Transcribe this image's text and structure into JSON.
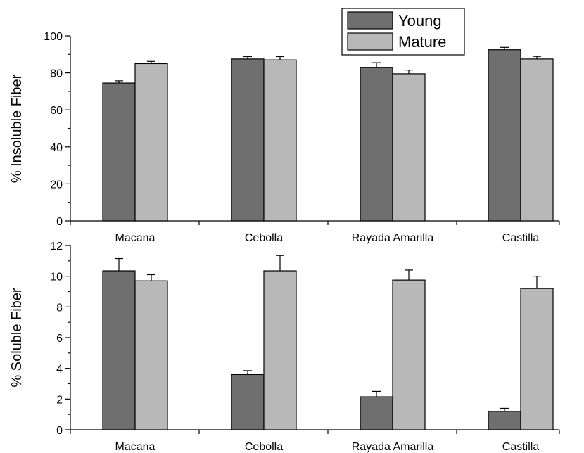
{
  "chart_data": [
    {
      "type": "bar",
      "title": "",
      "xlabel": "",
      "ylabel": "% Insoluble Fiber",
      "ylim": [
        0,
        100
      ],
      "yticks": [
        0,
        20,
        40,
        60,
        80,
        100
      ],
      "categories": [
        "Macana",
        "Cebolla",
        "Rayada Amarilla",
        "Castilla"
      ],
      "series": [
        {
          "name": "Young",
          "color": "#6f6f6f",
          "values": [
            74.5,
            87.5,
            83.0,
            92.5
          ],
          "errors": [
            1.2,
            1.3,
            2.5,
            1.3
          ]
        },
        {
          "name": "Mature",
          "color": "#b8b8b8",
          "values": [
            85.0,
            87.0,
            79.5,
            87.5
          ],
          "errors": [
            1.2,
            1.8,
            2.0,
            1.4
          ]
        }
      ],
      "legend": "top-right",
      "grid": false
    },
    {
      "type": "bar",
      "title": "",
      "xlabel": "",
      "ylabel": "% Soluble Fiber",
      "ylim": [
        0,
        12
      ],
      "yticks": [
        0,
        2,
        4,
        6,
        8,
        10,
        12
      ],
      "categories": [
        "Macana",
        "Cebolla",
        "Rayada Amarilla",
        "Castilla"
      ],
      "series": [
        {
          "name": "Young",
          "color": "#6f6f6f",
          "values": [
            10.35,
            3.6,
            2.15,
            1.2
          ],
          "errors": [
            0.8,
            0.25,
            0.35,
            0.2
          ]
        },
        {
          "name": "Mature",
          "color": "#b8b8b8",
          "values": [
            9.7,
            10.35,
            9.75,
            9.2
          ],
          "errors": [
            0.4,
            1.0,
            0.65,
            0.8
          ]
        }
      ],
      "legend": "none",
      "grid": false
    }
  ]
}
